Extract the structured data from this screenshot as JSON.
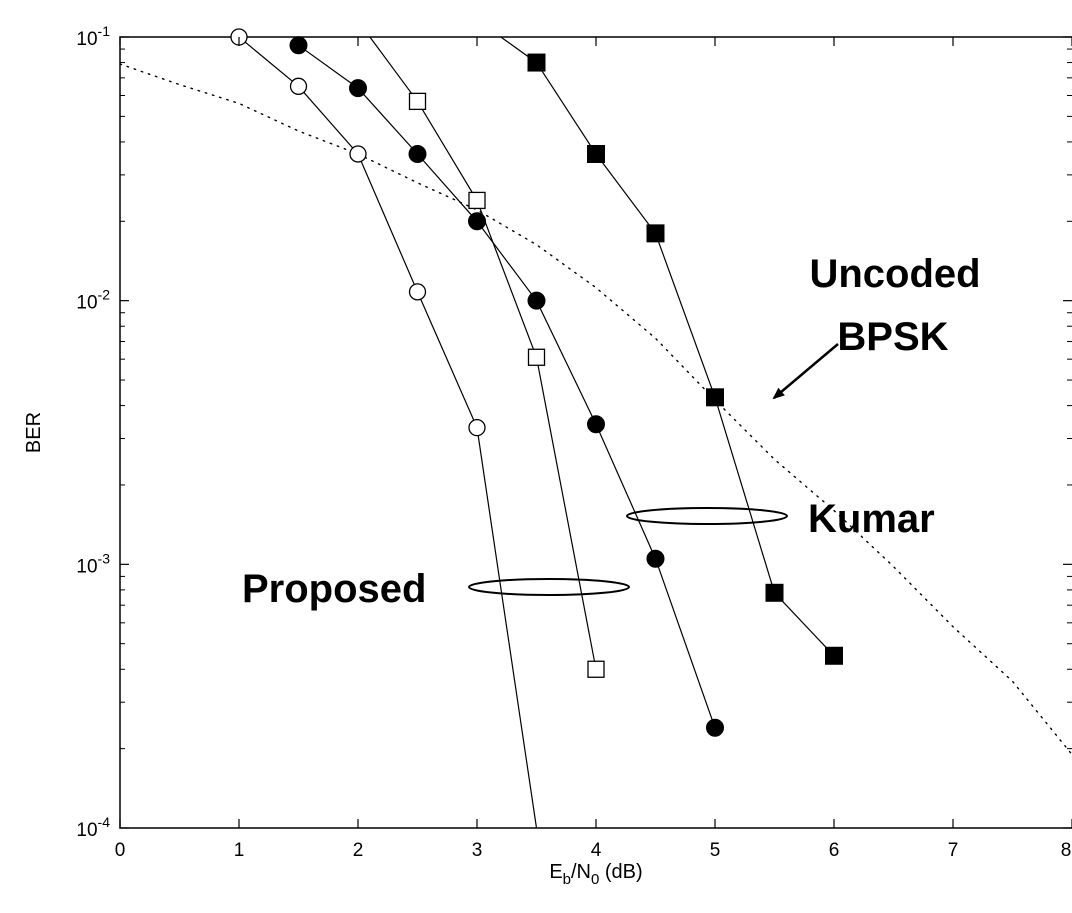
{
  "chart_data": {
    "type": "line",
    "title": "",
    "xlabel": {
      "main": "E",
      "sub1": "b",
      "mid": "/N",
      "sub2": "0",
      "tail": " (dB)"
    },
    "ylabel": "BER",
    "xlim": [
      0,
      8
    ],
    "ylim": [
      0.0001,
      0.1
    ],
    "yscale": "log",
    "x_ticks": [
      "0",
      "1",
      "2",
      "3",
      "4",
      "5",
      "6",
      "7",
      "8"
    ],
    "y_ticks": [
      {
        "base": "10",
        "exp": "-1"
      },
      {
        "base": "10",
        "exp": "-2"
      },
      {
        "base": "10",
        "exp": "-3"
      },
      {
        "base": "10",
        "exp": "-4"
      }
    ],
    "grid": false,
    "series": [
      {
        "marker": "open-circle",
        "style": "solid",
        "x": [
          1,
          1.5,
          2,
          2.5,
          3,
          3.5
        ],
        "y": [
          0.1,
          0.065,
          0.036,
          0.0108,
          0.0033,
          0.0001
        ]
      },
      {
        "marker": "open-square",
        "style": "solid",
        "x": [
          2.1,
          2.5,
          3,
          3.5,
          4
        ],
        "y": [
          0.1,
          0.057,
          0.024,
          0.0061,
          0.0004
        ]
      },
      {
        "marker": "filled-circle",
        "style": "solid",
        "x": [
          1.5,
          2,
          2.5,
          3,
          3.5,
          4,
          4.5,
          5
        ],
        "y": [
          0.093,
          0.064,
          0.036,
          0.02,
          0.01,
          0.0034,
          0.00105,
          0.00024
        ]
      },
      {
        "marker": "filled-square",
        "style": "solid",
        "x": [
          3.2,
          3.5,
          4,
          4.5,
          5,
          5.5,
          6
        ],
        "y": [
          0.1,
          0.08,
          0.036,
          0.018,
          0.0043,
          0.00078,
          0.00045
        ]
      },
      {
        "marker": "none",
        "style": "dotted",
        "x": [
          0,
          0.5,
          1,
          1.5,
          2,
          2.5,
          3,
          3.5,
          4,
          4.5,
          5,
          5.5,
          6,
          6.5,
          7,
          7.5,
          8
        ],
        "y": [
          0.079,
          0.066,
          0.056,
          0.044,
          0.036,
          0.028,
          0.0221,
          0.0163,
          0.0112,
          0.0072,
          0.0042,
          0.0025,
          0.0016,
          0.00098,
          0.00058,
          0.00036,
          0.00019
        ]
      }
    ],
    "annotations": [
      {
        "id": "uncoded",
        "lines": [
          "Uncoded",
          "BPSK"
        ]
      },
      {
        "id": "kumar",
        "lines": [
          "Kumar"
        ]
      },
      {
        "id": "proposed",
        "lines": [
          "Proposed"
        ]
      }
    ]
  }
}
